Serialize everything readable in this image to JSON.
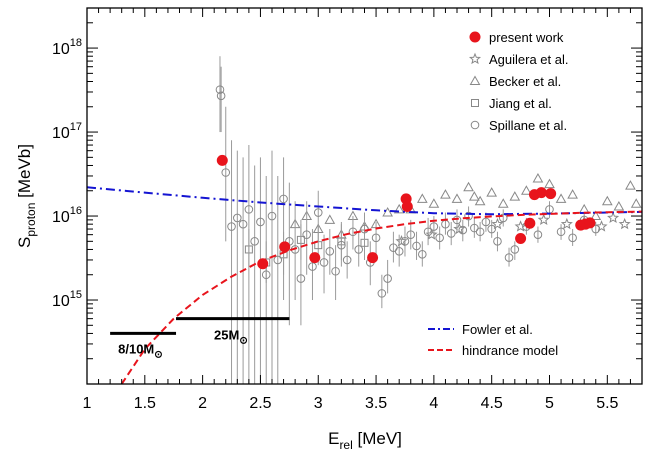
{
  "chart_data": {
    "type": "scatter",
    "xlabel": "E",
    "xlabel_sub": "rel",
    "xlabel_unit": " [MeV]",
    "ylabel": "S",
    "ylabel_sub": "proton",
    "ylabel_unit": " [MeVb]",
    "xlim": [
      1.0,
      5.8
    ],
    "ylim": [
      100000000000000.0,
      3e+18
    ],
    "yscale": "log",
    "grid": false,
    "legend_position": "top-right",
    "x_ticks": [
      1,
      1.5,
      2,
      2.5,
      3,
      3.5,
      4,
      4.5,
      5,
      5.5
    ],
    "x_tick_labels": [
      "1",
      "1.5",
      "2",
      "2.5",
      "3",
      "3.5",
      "4",
      "4.5",
      "5",
      "5.5"
    ],
    "y_ticks": [
      {
        "value": 1000000000000000.0,
        "base": "10",
        "exp": "15"
      },
      {
        "value": 1e+16,
        "base": "10",
        "exp": "16"
      },
      {
        "value": 1e+17,
        "base": "10",
        "exp": "17"
      },
      {
        "value": 1e+18,
        "base": "10",
        "exp": "18"
      }
    ],
    "series": [
      {
        "name": "present work",
        "marker": "filled-circle",
        "color": "#e8141c",
        "x": [
          2.17,
          2.52,
          2.71,
          2.97,
          3.47,
          3.76,
          3.77,
          4.75,
          4.83,
          4.87,
          4.93,
          5.01,
          5.27,
          5.31,
          5.35
        ],
        "y": [
          4.6e+16,
          2700000000000000.0,
          4300000000000000.0,
          3200000000000000.0,
          3200000000000000.0,
          1.6e+16,
          1.3e+16,
          5400000000000000.0,
          8200000000000000.0,
          1.8e+16,
          1.9e+16,
          1.85e+16,
          7800000000000000.0,
          8000000000000000.0,
          8300000000000000.0
        ]
      },
      {
        "name": "Aguilera et al.",
        "marker": "star",
        "color": "#888888",
        "x": [
          3.72,
          3.98,
          4.22,
          4.55,
          4.75,
          4.95,
          5.15,
          5.3,
          5.45,
          5.55,
          5.65
        ],
        "y": [
          5000000000000000.0,
          6000000000000000.0,
          7000000000000000.0,
          8000000000000000.0,
          7500000000000000.0,
          9000000000000000.0,
          8000000000000000.0,
          8500000000000000.0,
          7500000000000000.0,
          9500000000000000.0,
          8000000000000000.0
        ]
      },
      {
        "name": "Becker et al.",
        "marker": "open-triangle",
        "color": "#888888",
        "x": [
          2.8,
          2.9,
          3.0,
          3.1,
          3.2,
          3.3,
          3.4,
          3.5,
          3.6,
          3.7,
          3.8,
          3.9,
          4.0,
          4.1,
          4.2,
          4.3,
          4.35,
          4.4,
          4.5,
          4.6,
          4.7,
          4.8,
          4.9,
          5.0,
          5.1,
          5.2,
          5.3,
          5.4,
          5.5,
          5.6,
          5.7,
          5.75
        ],
        "y": [
          8000000000000000.0,
          1e+16,
          7000000000000000.0,
          9000000000000000.0,
          6000000000000000.0,
          1e+16,
          7500000000000000.0,
          8000000000000000.0,
          1.1e+16,
          1.2e+16,
          1.2e+16,
          1.6e+16,
          1.4e+16,
          1.8e+16,
          1.6e+16,
          2.2e+16,
          1.7e+16,
          1.5e+16,
          1.9e+16,
          1.4e+16,
          1.7e+16,
          2e+16,
          2.8e+16,
          2.4e+16,
          1.6e+16,
          1.8e+16,
          1.2e+16,
          1e+16,
          1.5e+16,
          1.3e+16,
          2.3e+16,
          1.4e+16
        ]
      },
      {
        "name": "Jiang et al.",
        "marker": "open-square",
        "color": "#888888",
        "x": [
          2.4,
          2.55,
          2.7,
          2.85,
          3.0,
          3.2,
          3.4
        ],
        "y": [
          4000000000000000.0,
          2800000000000000.0,
          3500000000000000.0,
          5200000000000000.0,
          4500000000000000.0,
          5000000000000000.0,
          4800000000000000.0
        ],
        "err": [
          [
            2500000000000000.0,
            7000000000000000.0
          ],
          [
            1600000000000000.0,
            5000000000000000.0
          ],
          [
            2000000000000000.0,
            6500000000000000.0
          ],
          [
            3000000000000000.0,
            9000000000000000.0
          ],
          [
            2600000000000000.0,
            8000000000000000.0
          ],
          [
            3000000000000000.0,
            8500000000000000.0
          ],
          [
            3000000000000000.0,
            8000000000000000.0
          ]
        ]
      },
      {
        "name": "Spillane et al.",
        "marker": "open-circle",
        "color": "#888888",
        "x": [
          2.15,
          2.16,
          2.2,
          2.25,
          2.3,
          2.35,
          2.4,
          2.45,
          2.5,
          2.55,
          2.6,
          2.65,
          2.7,
          2.75,
          2.8,
          2.85,
          2.9,
          2.95,
          3.0,
          3.05,
          3.1,
          3.15,
          3.2,
          3.25,
          3.3,
          3.35,
          3.4,
          3.45,
          3.5,
          3.55,
          3.6,
          3.65,
          3.7,
          3.75,
          3.8,
          3.85,
          3.9,
          3.95,
          4.0,
          4.05,
          4.1,
          4.15,
          4.2,
          4.25,
          4.3,
          4.35,
          4.4,
          4.45,
          4.5,
          4.55,
          4.6,
          4.65,
          4.7,
          4.8,
          4.9,
          5.0,
          5.1,
          5.2,
          5.3,
          5.4
        ],
        "y": [
          3.2e+17,
          2.7e+17,
          3.3e+16,
          7500000000000000.0,
          9500000000000000.0,
          8000000000000000.0,
          1.2e+16,
          5000000000000000.0,
          8500000000000000.0,
          2000000000000000.0,
          1e+16,
          3000000000000000.0,
          1.6e+16,
          5000000000000000.0,
          4000000000000000.0,
          1800000000000000.0,
          6000000000000000.0,
          2500000000000000.0,
          1.1e+16,
          2800000000000000.0,
          3800000000000000.0,
          2200000000000000.0,
          4500000000000000.0,
          3000000000000000.0,
          6500000000000000.0,
          4000000000000000.0,
          7000000000000000.0,
          2800000000000000.0,
          5500000000000000.0,
          1200000000000000.0,
          1800000000000000.0,
          4200000000000000.0,
          3800000000000000.0,
          5000000000000000.0,
          6000000000000000.0,
          4400000000000000.0,
          3500000000000000.0,
          6500000000000000.0,
          7500000000000000.0,
          5500000000000000.0,
          8000000000000000.0,
          6200000000000000.0,
          9000000000000000.0,
          6800000000000000.0,
          1e+16,
          7200000000000000.0,
          6500000000000000.0,
          8500000000000000.0,
          7000000000000000.0,
          5000000000000000.0,
          9500000000000000.0,
          3200000000000000.0,
          4000000000000000.0,
          7500000000000000.0,
          6000000000000000.0,
          1.2e+16,
          6500000000000000.0,
          5500000000000000.0,
          9000000000000000.0,
          7000000000000000.0
        ],
        "err": [
          [
            1e+17,
            8e+17
          ],
          [
            1e+17,
            6e+17
          ],
          [
            5000000000000000.0,
            2e+17
          ],
          [
            100000000000000.0,
            8e+16
          ],
          [
            100000000000000.0,
            6e+16
          ],
          [
            100000000000000.0,
            5e+16
          ],
          [
            100000000000000.0,
            7e+16
          ],
          [
            100000000000000.0,
            4e+16
          ],
          [
            100000000000000.0,
            5e+16
          ],
          [
            100000000000000.0,
            3e+16
          ],
          [
            100000000000000.0,
            6e+16
          ],
          [
            100000000000000.0,
            3e+16
          ],
          [
            1000000000000000.0,
            5e+16
          ],
          [
            500000000000000.0,
            2.5e+16
          ],
          [
            1000000000000000.0,
            1.5e+16
          ],
          [
            500000000000000.0,
            8000000000000000.0
          ],
          [
            2000000000000000.0,
            1.5e+16
          ],
          [
            1000000000000000.0,
            7000000000000000.0
          ],
          [
            5000000000000000.0,
            2e+16
          ],
          [
            1200000000000000.0,
            6000000000000000.0
          ],
          [
            2000000000000000.0,
            7000000000000000.0
          ],
          [
            1000000000000000.0,
            4500000000000000.0
          ],
          [
            2500000000000000.0,
            8000000000000000.0
          ],
          [
            1800000000000000.0,
            5000000000000000.0
          ],
          [
            4000000000000000.0,
            1e+16
          ],
          [
            2500000000000000.0,
            6500000000000000.0
          ],
          [
            4500000000000000.0,
            1.1e+16
          ],
          [
            1500000000000000.0,
            5000000000000000.0
          ],
          [
            3500000000000000.0,
            8500000000000000.0
          ],
          [
            800000000000000.0,
            2000000000000000.0
          ],
          [
            1200000000000000.0,
            3000000000000000.0
          ],
          [
            2800000000000000.0,
            6500000000000000.0
          ],
          [
            2500000000000000.0,
            6000000000000000.0
          ],
          [
            3300000000000000.0,
            7500000000000000.0
          ],
          [
            4000000000000000.0,
            9000000000000000.0
          ],
          [
            3000000000000000.0,
            6500000000000000.0
          ],
          [
            2500000000000000.0,
            5000000000000000.0
          ],
          [
            4500000000000000.0,
            9500000000000000.0
          ],
          [
            5500000000000000.0,
            1e+16
          ],
          [
            4000000000000000.0,
            7500000000000000.0
          ],
          [
            6000000000000000.0,
            1.1e+16
          ],
          [
            4500000000000000.0,
            8500000000000000.0
          ],
          [
            6500000000000000.0,
            1.2e+16
          ],
          [
            5000000000000000.0,
            9000000000000000.0
          ],
          [
            7500000000000000.0,
            1.3e+16
          ],
          [
            5500000000000000.0,
            9500000000000000.0
          ],
          [
            5000000000000000.0,
            8500000000000000.0
          ],
          [
            6500000000000000.0,
            1.1e+16
          ],
          [
            5500000000000000.0,
            9000000000000000.0
          ],
          [
            3800000000000000.0,
            6500000000000000.0
          ],
          [
            7500000000000000.0,
            1.2e+16
          ],
          [
            2500000000000000.0,
            4200000000000000.0
          ],
          [
            3000000000000000.0,
            5000000000000000.0
          ],
          [
            6000000000000000.0,
            9500000000000000.0
          ],
          [
            4800000000000000.0,
            7500000000000000.0
          ],
          [
            9500000000000000.0,
            1.5e+16
          ],
          [
            5200000000000000.0,
            8000000000000000.0
          ],
          [
            4400000000000000.0,
            7000000000000000.0
          ],
          [
            7500000000000000.0,
            1.1e+16
          ],
          [
            5800000000000000.0,
            8500000000000000.0
          ]
        ]
      },
      {
        "name": "Fowler et al.",
        "marker": "dash-dot-line",
        "color": "#1414d2",
        "x": [
          1.0,
          1.5,
          2.0,
          2.5,
          3.0,
          3.5,
          4.0,
          4.5,
          5.0,
          5.5,
          5.8
        ],
        "y": [
          2.2e+16,
          1.9e+16,
          1.65e+16,
          1.45e+16,
          1.3e+16,
          1.17e+16,
          1.08e+16,
          1.05e+16,
          1.07e+16,
          1.1e+16,
          1.12e+16
        ]
      },
      {
        "name": "hindrance model",
        "marker": "dashed-line",
        "color": "#e8141c",
        "x": [
          1.3,
          1.5,
          1.75,
          2.0,
          2.25,
          2.5,
          2.75,
          3.0,
          3.25,
          3.5,
          3.75,
          4.0,
          4.25,
          4.5,
          4.75,
          5.0,
          5.25,
          5.5,
          5.8
        ],
        "y": [
          100000000000000.0,
          260000000000000.0,
          600000000000000.0,
          1150000000000000.0,
          1900000000000000.0,
          2900000000000000.0,
          3900000000000000.0,
          5000000000000000.0,
          6100000000000000.0,
          7100000000000000.0,
          8000000000000000.0,
          8800000000000000.0,
          9400000000000000.0,
          9900000000000000.0,
          1.03e+16,
          1.06e+16,
          1.09e+16,
          1.11e+16,
          1.13e+16
        ]
      }
    ],
    "annotations": [
      {
        "text": "8/10M",
        "symbol": "⊙",
        "x_range": [
          1.2,
          1.77
        ],
        "y": 400000000000000.0
      },
      {
        "text": "25M",
        "symbol": "⊙",
        "x_range": [
          1.77,
          2.75
        ],
        "y": 600000000000000.0
      }
    ],
    "colors": {
      "axis": "#000000",
      "gray_marker": "#888888"
    }
  }
}
